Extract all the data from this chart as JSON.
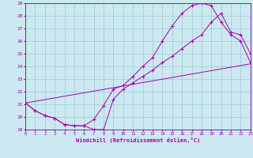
{
  "xlabel": "Windchill (Refroidissement éolien,°C)",
  "bg_color": "#cce8f0",
  "grid_color": "#99ccd4",
  "line_color": "#aa00aa",
  "spine_color": "#7700aa",
  "xmin": 0,
  "xmax": 23,
  "ymin": 19,
  "ymax": 29,
  "series1_x": [
    0,
    1,
    2,
    3,
    4,
    5,
    6,
    7,
    8,
    9,
    10,
    11,
    12,
    13,
    14,
    15,
    16,
    17,
    18,
    19,
    20,
    21,
    22,
    23
  ],
  "series1_y": [
    21.1,
    20.5,
    20.1,
    19.9,
    19.4,
    19.3,
    19.3,
    19.0,
    19.0,
    21.4,
    22.2,
    22.7,
    23.2,
    23.7,
    24.3,
    24.8,
    25.4,
    26.0,
    26.5,
    27.5,
    28.2,
    26.7,
    26.5,
    25.0
  ],
  "series2_x": [
    0,
    1,
    2,
    3,
    4,
    5,
    6,
    7,
    8,
    9,
    10,
    11,
    12,
    13,
    14,
    15,
    16,
    17,
    18,
    19,
    20,
    21,
    22,
    23
  ],
  "series2_y": [
    21.1,
    20.5,
    20.1,
    19.9,
    19.4,
    19.3,
    19.3,
    19.8,
    20.9,
    22.2,
    22.5,
    23.2,
    24.0,
    24.7,
    26.0,
    27.2,
    28.2,
    28.8,
    29.0,
    28.8,
    27.5,
    26.5,
    26.0,
    24.3
  ],
  "series3_x": [
    0,
    23
  ],
  "series3_y": [
    21.1,
    24.2
  ]
}
